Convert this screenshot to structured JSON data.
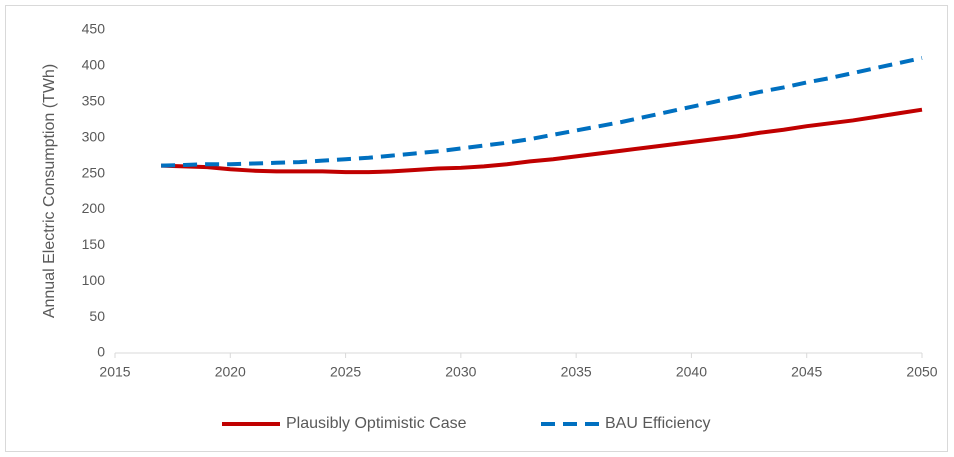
{
  "chart_data": {
    "type": "line",
    "y_label": "Annual Electric Consumption (TWh)",
    "x": [
      2017,
      2018,
      2019,
      2020,
      2021,
      2022,
      2023,
      2024,
      2025,
      2026,
      2027,
      2028,
      2029,
      2030,
      2031,
      2032,
      2033,
      2034,
      2035,
      2036,
      2037,
      2038,
      2039,
      2040,
      2041,
      2042,
      2043,
      2044,
      2045,
      2046,
      2047,
      2048,
      2049,
      2050
    ],
    "series": [
      {
        "name": "Plausibly Optimistic Case",
        "color": "#c00000",
        "dash": false,
        "values": [
          261,
          260,
          259,
          256,
          254,
          253,
          253,
          253,
          252,
          252,
          253,
          255,
          257,
          258,
          260,
          263,
          267,
          270,
          274,
          278,
          282,
          286,
          290,
          294,
          298,
          302,
          307,
          311,
          316,
          320,
          324,
          329,
          334,
          339
        ]
      },
      {
        "name": "BAU Efficiency",
        "color": "#0070c0",
        "dash": true,
        "values": [
          261,
          262,
          263,
          263,
          264,
          265,
          266,
          268,
          270,
          272,
          275,
          278,
          281,
          285,
          289,
          293,
          298,
          304,
          310,
          316,
          322,
          329,
          336,
          343,
          350,
          357,
          364,
          370,
          377,
          383,
          390,
          397,
          404,
          411
        ]
      }
    ],
    "xlim": [
      2015,
      2050
    ],
    "xticks": [
      2015,
      2020,
      2025,
      2030,
      2035,
      2040,
      2045,
      2050
    ],
    "ylim": [
      0,
      450
    ],
    "yticks": [
      0,
      50,
      100,
      150,
      200,
      250,
      300,
      350,
      400,
      450
    ],
    "grid": false,
    "legend": "bottom"
  }
}
